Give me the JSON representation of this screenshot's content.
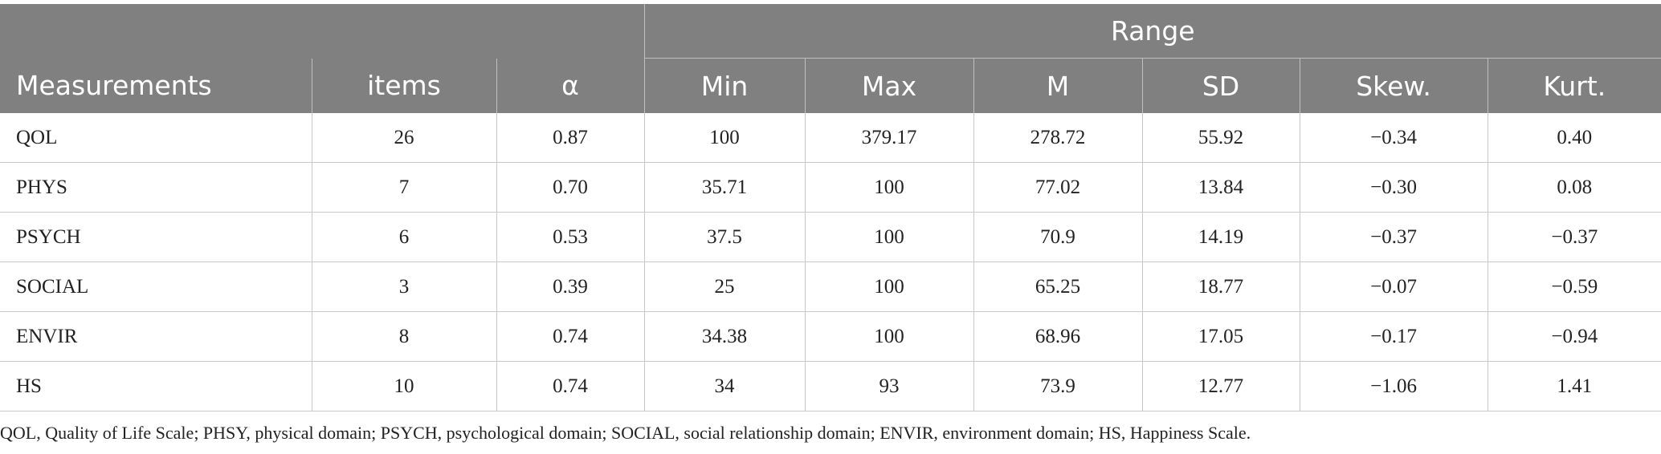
{
  "table": {
    "super_header": "Range",
    "headers": [
      "Measurements",
      "items",
      "α",
      "Min",
      "Max",
      "M",
      "SD",
      "Skew.",
      "Kurt."
    ],
    "rows": [
      [
        "QOL",
        "26",
        "0.87",
        "100",
        "379.17",
        "278.72",
        "55.92",
        "−0.34",
        "0.40"
      ],
      [
        "PHYS",
        "7",
        "0.70",
        "35.71",
        "100",
        "77.02",
        "13.84",
        "−0.30",
        "0.08"
      ],
      [
        "PSYCH",
        "6",
        "0.53",
        "37.5",
        "100",
        "70.9",
        "14.19",
        "−0.37",
        "−0.37"
      ],
      [
        "SOCIAL",
        "3",
        "0.39",
        "25",
        "100",
        "65.25",
        "18.77",
        "−0.07",
        "−0.59"
      ],
      [
        "ENVIR",
        "8",
        "0.74",
        "34.38",
        "100",
        "68.96",
        "17.05",
        "−0.17",
        "−0.94"
      ],
      [
        "HS",
        "10",
        "0.74",
        "34",
        "93",
        "73.9",
        "12.77",
        "−1.06",
        "1.41"
      ]
    ]
  },
  "footnote": "QOL, Quality of Life Scale; PHSY, physical domain; PSYCH, psychological domain; SOCIAL, social relationship domain; ENVIR, environment domain; HS, Happiness Scale."
}
